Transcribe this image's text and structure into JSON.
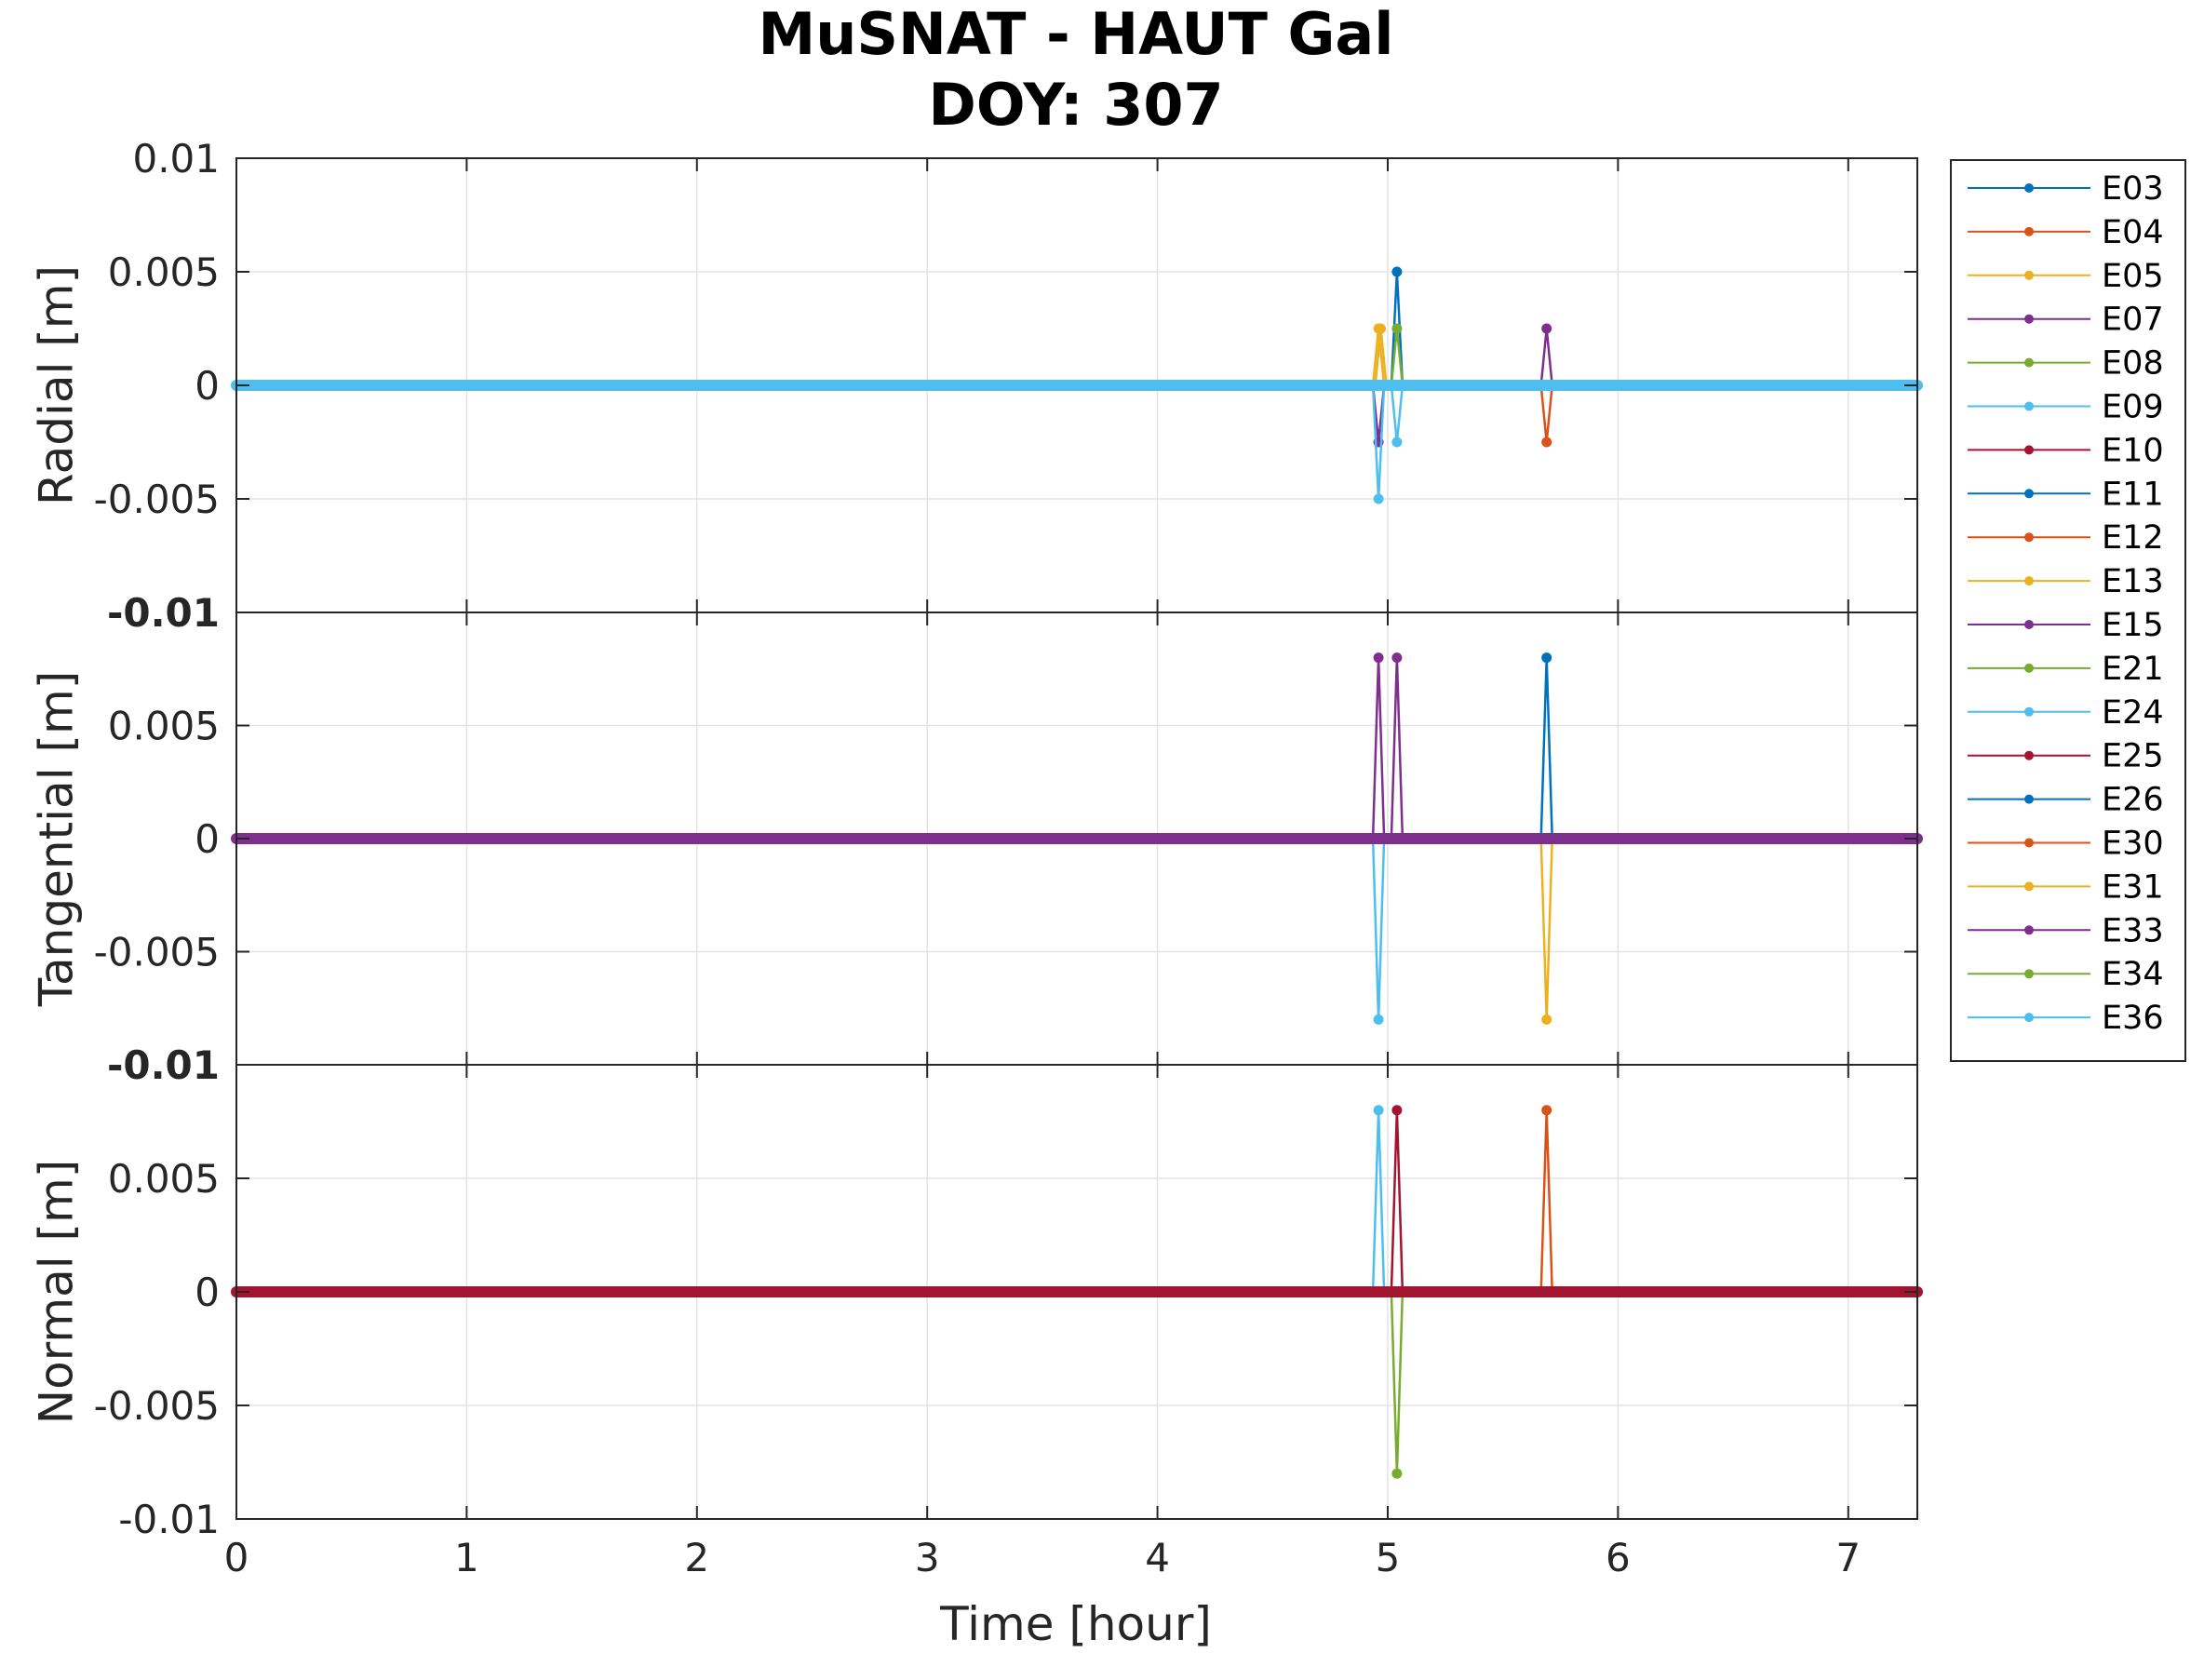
{
  "chart_data": {
    "type": "line",
    "title": [
      "MuSNAT - HAUT Gal",
      "DOY: 307"
    ],
    "xlabel": "Time [hour]",
    "xlim": [
      0,
      7.3
    ],
    "x_ticks": [
      0,
      1,
      2,
      3,
      4,
      5,
      6,
      7
    ],
    "x_tick_labels": [
      "0",
      "1",
      "2",
      "3",
      "4",
      "5",
      "6",
      "7"
    ],
    "grid": true,
    "legend_position": "outside-right-top",
    "series_names": [
      "E03",
      "E04",
      "E05",
      "E07",
      "E08",
      "E09",
      "E10",
      "E11",
      "E12",
      "E13",
      "E15",
      "E21",
      "E24",
      "E25",
      "E26",
      "E30",
      "E31",
      "E33",
      "E34",
      "E36"
    ],
    "colors": [
      "#0072BD",
      "#D95319",
      "#EDB120",
      "#7E2F8E",
      "#77AC30",
      "#4DBEEE",
      "#A2142F",
      "#0072BD",
      "#D95319",
      "#EDB120",
      "#7E2F8E",
      "#77AC30",
      "#4DBEEE",
      "#A2142F",
      "#0072BD",
      "#D95319",
      "#EDB120",
      "#7E2F8E",
      "#77AC30",
      "#4DBEEE"
    ],
    "subplots": [
      {
        "ylabel": "Radial [m]",
        "ylim": [
          -0.01,
          0.01
        ],
        "y_ticks": [
          0.01,
          0.005,
          0,
          -0.005,
          -0.01
        ],
        "y_tick_labels": [
          "0.01",
          "0.005",
          "0",
          "-0.005",
          "-0.01"
        ],
        "baseline_color": "#4DBEEE",
        "spikes": [
          {
            "series": "E05",
            "x": 4.96,
            "y": 0.0025
          },
          {
            "series": "E07",
            "x": 4.96,
            "y": -0.0025
          },
          {
            "series": "E09",
            "x": 4.96,
            "y": -0.005
          },
          {
            "series": "E13",
            "x": 4.97,
            "y": 0.0025
          },
          {
            "series": "E11",
            "x": 5.04,
            "y": 0.005
          },
          {
            "series": "E08",
            "x": 5.04,
            "y": 0.0025
          },
          {
            "series": "E36",
            "x": 5.04,
            "y": -0.0025
          },
          {
            "series": "E33",
            "x": 5.69,
            "y": 0.0025
          },
          {
            "series": "E04",
            "x": 5.69,
            "y": -0.0025
          }
        ]
      },
      {
        "ylabel": "Tangential [m]",
        "ylim": [
          -0.01,
          0.01
        ],
        "y_ticks": [
          0.01,
          0.005,
          0,
          -0.005,
          -0.01
        ],
        "y_tick_labels": [
          "",
          "0.005",
          "0",
          "-0.005",
          "-0.01"
        ],
        "baseline_color": "#7E2F8E",
        "spikes": [
          {
            "series": "E07",
            "x": 4.96,
            "y": 0.008
          },
          {
            "series": "E24",
            "x": 4.96,
            "y": -0.008
          },
          {
            "series": "E33",
            "x": 5.04,
            "y": 0.008
          },
          {
            "series": "E11",
            "x": 5.69,
            "y": 0.008
          },
          {
            "series": "E13",
            "x": 5.69,
            "y": -0.008
          }
        ]
      },
      {
        "ylabel": "Normal [m]",
        "ylim": [
          -0.01,
          0.01
        ],
        "y_ticks": [
          0.01,
          0.005,
          0,
          -0.005,
          -0.01
        ],
        "y_tick_labels": [
          "",
          "0.005",
          "0",
          "-0.005",
          "-0.01"
        ],
        "baseline_color": "#A2142F",
        "spikes": [
          {
            "series": "E09",
            "x": 4.96,
            "y": 0.008
          },
          {
            "series": "E25",
            "x": 5.04,
            "y": 0.008
          },
          {
            "series": "E21",
            "x": 5.04,
            "y": -0.008
          },
          {
            "series": "E04",
            "x": 5.69,
            "y": 0.008
          }
        ]
      }
    ]
  }
}
